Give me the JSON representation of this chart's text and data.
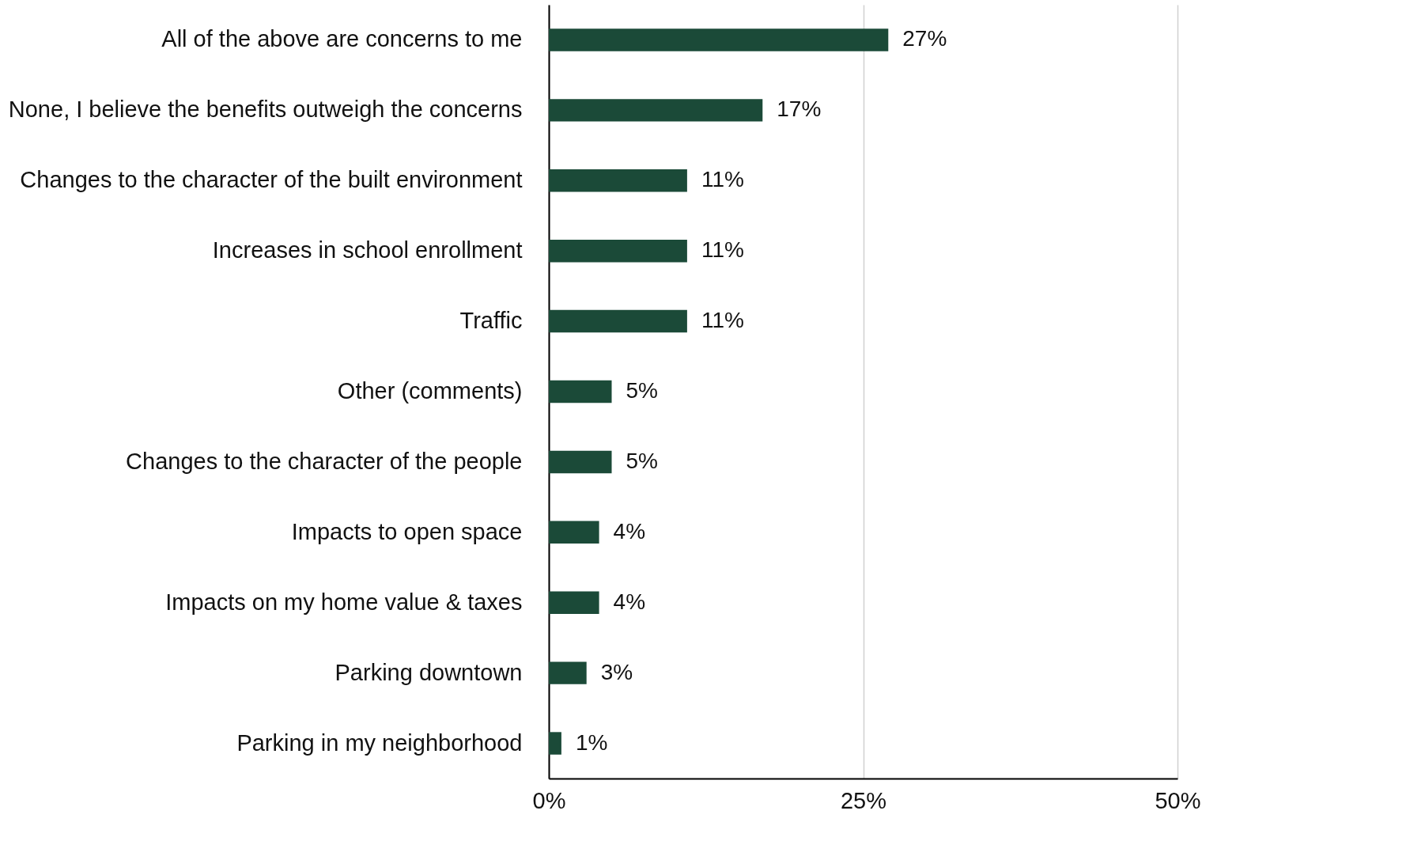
{
  "chart_data": {
    "type": "bar",
    "orientation": "horizontal",
    "categories": [
      "All of the above are concerns to me",
      "None, I believe the benefits outweigh the concerns",
      "Changes to the character of the built environment",
      "Increases in school enrollment",
      "Traffic",
      "Other (comments)",
      "Changes to the character of the people",
      "Impacts to open space",
      "Impacts on my home value & taxes",
      "Parking downtown",
      "Parking in my neighborhood"
    ],
    "values": [
      27,
      17,
      11,
      11,
      11,
      5,
      5,
      4,
      4,
      3,
      1
    ],
    "value_labels": [
      "27%",
      "17%",
      "11%",
      "11%",
      "11%",
      "5%",
      "5%",
      "4%",
      "4%",
      "3%",
      "1%"
    ],
    "color": "#1b4a38",
    "xlim": [
      0,
      50
    ],
    "xticks": [
      {
        "value": 0,
        "label": "0%"
      },
      {
        "value": 25,
        "label": "25%"
      },
      {
        "value": 50,
        "label": "50%"
      }
    ],
    "grid": "x"
  }
}
